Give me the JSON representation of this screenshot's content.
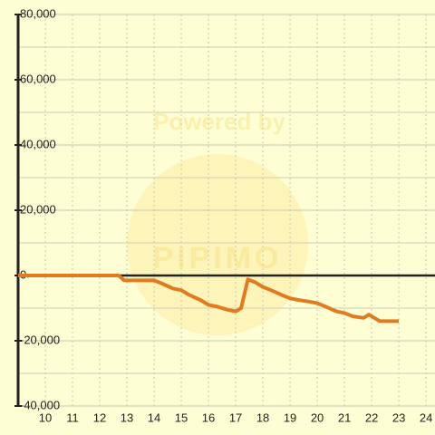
{
  "chart_data": {
    "type": "line",
    "watermark": [
      "Powered by",
      "PIPIMO"
    ],
    "x": [
      9,
      12.7,
      12.9,
      14,
      14.3,
      14.7,
      15,
      15.3,
      15.7,
      16,
      16.3,
      16.7,
      17,
      17.2,
      17.45,
      17.7,
      18,
      18.3,
      18.7,
      19,
      19.3,
      19.7,
      20,
      20.3,
      20.7,
      21,
      21.3,
      21.7,
      21.9,
      22.1,
      22.3,
      22.7,
      23
    ],
    "series": [
      {
        "color": "#e07b20",
        "values": [
          0,
          0,
          -1500,
          -1500,
          -2500,
          -4000,
          -4500,
          -6000,
          -7500,
          -9000,
          -9500,
          -10500,
          -11000,
          -10000,
          -1200,
          -2000,
          -3500,
          -4500,
          -6000,
          -7000,
          -7500,
          -8000,
          -8500,
          -9500,
          -11000,
          -11500,
          -12500,
          -13000,
          -12000,
          -13000,
          -14000,
          -14000,
          -14000
        ]
      }
    ],
    "xlim": [
      9,
      24.33
    ],
    "xticks": [
      10,
      11,
      12,
      13,
      14,
      15,
      16,
      17,
      18,
      19,
      20,
      21,
      22,
      23,
      24
    ],
    "ylim": [
      -40000,
      80000
    ],
    "yticks": [
      {
        "value": -40000,
        "label": "-40,000"
      },
      {
        "value": -20000,
        "label": "-20,000"
      },
      0,
      {
        "value": 20000,
        "label": "20,000"
      },
      {
        "value": 40000,
        "label": "40,000"
      },
      {
        "value": 60000,
        "label": "60,000"
      },
      {
        "value": 80000,
        "label": "80,000"
      }
    ],
    "grid": true
  }
}
